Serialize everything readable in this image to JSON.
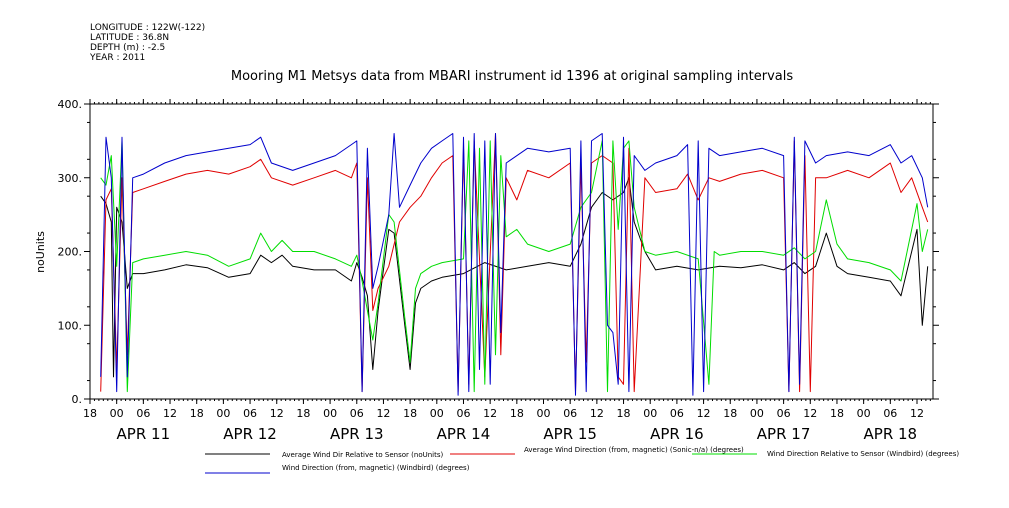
{
  "meta": {
    "longitude": "LONGITUDE : 122W(-122)",
    "latitude": "LATITUDE : 36.8N",
    "depth": "DEPTH (m) : -2.5",
    "year": "YEAR : 2011"
  },
  "chart_data": {
    "type": "line",
    "title": "Mooring M1 Metsys data from MBARI instrument id 1396 at original sampling intervals",
    "ylabel": "noUnits",
    "xlabel": "",
    "ylim": [
      0,
      400
    ],
    "yticks": [
      "0.",
      "100.",
      "200.",
      "300.",
      "400."
    ],
    "xlim_days": [
      10.5,
      18.4
    ],
    "x_hour_ticks": [
      "18",
      "00",
      "06",
      "12",
      "18",
      "00",
      "06",
      "12",
      "18",
      "00",
      "06",
      "12",
      "18",
      "00",
      "06",
      "12",
      "18",
      "00",
      "06",
      "12",
      "18",
      "00",
      "06",
      "12",
      "18",
      "00",
      "06",
      "12",
      "18",
      "00",
      "06",
      "12"
    ],
    "x_date_labels": [
      "APR 11",
      "APR 12",
      "APR 13",
      "APR 14",
      "APR 15",
      "APR 16",
      "APR 17",
      "APR 18"
    ],
    "x_date_positions": [
      11,
      12,
      13,
      14,
      15,
      16,
      17,
      18
    ],
    "grid": false,
    "legend_position": "bottom",
    "series": [
      {
        "name": "Average Wind Dir Relative to Sensor (noUnits)",
        "color": "#000000",
        "points": [
          [
            10.6,
            275
          ],
          [
            10.65,
            265
          ],
          [
            10.7,
            240
          ],
          [
            10.72,
            30
          ],
          [
            10.75,
            260
          ],
          [
            10.8,
            240
          ],
          [
            10.85,
            150
          ],
          [
            10.9,
            170
          ],
          [
            11.0,
            170
          ],
          [
            11.2,
            175
          ],
          [
            11.4,
            182
          ],
          [
            11.6,
            178
          ],
          [
            11.8,
            165
          ],
          [
            12.0,
            170
          ],
          [
            12.1,
            195
          ],
          [
            12.2,
            185
          ],
          [
            12.3,
            195
          ],
          [
            12.4,
            180
          ],
          [
            12.6,
            175
          ],
          [
            12.8,
            175
          ],
          [
            12.95,
            160
          ],
          [
            13.0,
            185
          ],
          [
            13.05,
            165
          ],
          [
            13.1,
            140
          ],
          [
            13.15,
            40
          ],
          [
            13.2,
            120
          ],
          [
            13.25,
            175
          ],
          [
            13.3,
            230
          ],
          [
            13.35,
            225
          ],
          [
            13.45,
            100
          ],
          [
            13.5,
            40
          ],
          [
            13.55,
            130
          ],
          [
            13.6,
            150
          ],
          [
            13.7,
            160
          ],
          [
            13.8,
            165
          ],
          [
            14.0,
            170
          ],
          [
            14.2,
            185
          ],
          [
            14.4,
            175
          ],
          [
            14.6,
            180
          ],
          [
            14.8,
            185
          ],
          [
            15.0,
            180
          ],
          [
            15.1,
            210
          ],
          [
            15.2,
            260
          ],
          [
            15.3,
            280
          ],
          [
            15.4,
            270
          ],
          [
            15.5,
            280
          ],
          [
            15.55,
            300
          ],
          [
            15.6,
            240
          ],
          [
            15.7,
            200
          ],
          [
            15.8,
            175
          ],
          [
            16.0,
            180
          ],
          [
            16.2,
            175
          ],
          [
            16.4,
            180
          ],
          [
            16.6,
            178
          ],
          [
            16.8,
            182
          ],
          [
            17.0,
            175
          ],
          [
            17.1,
            185
          ],
          [
            17.2,
            170
          ],
          [
            17.3,
            180
          ],
          [
            17.4,
            225
          ],
          [
            17.5,
            180
          ],
          [
            17.6,
            170
          ],
          [
            17.8,
            165
          ],
          [
            18.0,
            160
          ],
          [
            18.1,
            140
          ],
          [
            18.2,
            200
          ],
          [
            18.25,
            230
          ],
          [
            18.3,
            100
          ],
          [
            18.35,
            180
          ]
        ]
      },
      {
        "name": "Average Wind Direction (from, magnetic) (Sonic-n/a) (degrees)",
        "color": "#e00000",
        "points": [
          [
            10.6,
            10
          ],
          [
            10.65,
            270
          ],
          [
            10.7,
            285
          ],
          [
            10.75,
            40
          ],
          [
            10.8,
            300
          ],
          [
            10.85,
            60
          ],
          [
            10.9,
            280
          ],
          [
            11.0,
            285
          ],
          [
            11.2,
            295
          ],
          [
            11.4,
            305
          ],
          [
            11.6,
            310
          ],
          [
            11.8,
            305
          ],
          [
            12.0,
            315
          ],
          [
            12.1,
            325
          ],
          [
            12.2,
            300
          ],
          [
            12.4,
            290
          ],
          [
            12.6,
            300
          ],
          [
            12.8,
            310
          ],
          [
            12.95,
            300
          ],
          [
            13.0,
            320
          ],
          [
            13.05,
            10
          ],
          [
            13.1,
            300
          ],
          [
            13.15,
            120
          ],
          [
            13.2,
            150
          ],
          [
            13.3,
            180
          ],
          [
            13.4,
            240
          ],
          [
            13.5,
            260
          ],
          [
            13.6,
            275
          ],
          [
            13.7,
            300
          ],
          [
            13.8,
            320
          ],
          [
            13.9,
            330
          ],
          [
            13.95,
            10
          ],
          [
            14.0,
            340
          ],
          [
            14.05,
            20
          ],
          [
            14.1,
            350
          ],
          [
            14.2,
            30
          ],
          [
            14.3,
            360
          ],
          [
            14.35,
            60
          ],
          [
            14.4,
            300
          ],
          [
            14.5,
            270
          ],
          [
            14.6,
            310
          ],
          [
            14.8,
            300
          ],
          [
            15.0,
            320
          ],
          [
            15.05,
            10
          ],
          [
            15.1,
            320
          ],
          [
            15.15,
            50
          ],
          [
            15.2,
            320
          ],
          [
            15.3,
            330
          ],
          [
            15.4,
            320
          ],
          [
            15.45,
            30
          ],
          [
            15.5,
            20
          ],
          [
            15.55,
            340
          ],
          [
            15.6,
            10
          ],
          [
            15.7,
            300
          ],
          [
            15.8,
            280
          ],
          [
            16.0,
            285
          ],
          [
            16.1,
            305
          ],
          [
            16.2,
            270
          ],
          [
            16.3,
            300
          ],
          [
            16.4,
            295
          ],
          [
            16.6,
            305
          ],
          [
            16.8,
            310
          ],
          [
            17.0,
            300
          ],
          [
            17.05,
            10
          ],
          [
            17.1,
            350
          ],
          [
            17.15,
            10
          ],
          [
            17.2,
            330
          ],
          [
            17.25,
            10
          ],
          [
            17.3,
            300
          ],
          [
            17.4,
            300
          ],
          [
            17.6,
            310
          ],
          [
            17.8,
            300
          ],
          [
            18.0,
            320
          ],
          [
            18.1,
            280
          ],
          [
            18.2,
            300
          ],
          [
            18.3,
            260
          ],
          [
            18.35,
            240
          ]
        ]
      },
      {
        "name": "Wind Direction Relative to Sensor (Windbird) (degrees)",
        "color": "#00dd00",
        "points": [
          [
            10.6,
            300
          ],
          [
            10.65,
            290
          ],
          [
            10.7,
            330
          ],
          [
            10.75,
            180
          ],
          [
            10.8,
            350
          ],
          [
            10.85,
            10
          ],
          [
            10.9,
            185
          ],
          [
            11.0,
            190
          ],
          [
            11.2,
            195
          ],
          [
            11.4,
            200
          ],
          [
            11.6,
            195
          ],
          [
            11.8,
            180
          ],
          [
            12.0,
            190
          ],
          [
            12.1,
            225
          ],
          [
            12.2,
            200
          ],
          [
            12.3,
            215
          ],
          [
            12.4,
            200
          ],
          [
            12.6,
            200
          ],
          [
            12.8,
            190
          ],
          [
            12.95,
            180
          ],
          [
            13.0,
            195
          ],
          [
            13.05,
            160
          ],
          [
            13.1,
            120
          ],
          [
            13.15,
            80
          ],
          [
            13.2,
            130
          ],
          [
            13.25,
            190
          ],
          [
            13.3,
            250
          ],
          [
            13.35,
            240
          ],
          [
            13.45,
            110
          ],
          [
            13.5,
            50
          ],
          [
            13.55,
            150
          ],
          [
            13.6,
            170
          ],
          [
            13.7,
            180
          ],
          [
            13.8,
            185
          ],
          [
            14.0,
            190
          ],
          [
            14.05,
            350
          ],
          [
            14.1,
            10
          ],
          [
            14.15,
            340
          ],
          [
            14.2,
            20
          ],
          [
            14.25,
            350
          ],
          [
            14.3,
            60
          ],
          [
            14.35,
            330
          ],
          [
            14.4,
            220
          ],
          [
            14.5,
            230
          ],
          [
            14.6,
            210
          ],
          [
            14.8,
            200
          ],
          [
            15.0,
            210
          ],
          [
            15.1,
            260
          ],
          [
            15.2,
            280
          ],
          [
            15.3,
            350
          ],
          [
            15.35,
            10
          ],
          [
            15.4,
            350
          ],
          [
            15.45,
            230
          ],
          [
            15.5,
            340
          ],
          [
            15.55,
            350
          ],
          [
            15.6,
            260
          ],
          [
            15.7,
            200
          ],
          [
            15.8,
            195
          ],
          [
            16.0,
            200
          ],
          [
            16.2,
            190
          ],
          [
            16.3,
            20
          ],
          [
            16.35,
            200
          ],
          [
            16.4,
            195
          ],
          [
            16.6,
            200
          ],
          [
            16.8,
            200
          ],
          [
            17.0,
            195
          ],
          [
            17.1,
            205
          ],
          [
            17.2,
            190
          ],
          [
            17.3,
            200
          ],
          [
            17.4,
            270
          ],
          [
            17.5,
            210
          ],
          [
            17.6,
            190
          ],
          [
            17.8,
            185
          ],
          [
            18.0,
            175
          ],
          [
            18.1,
            160
          ],
          [
            18.2,
            230
          ],
          [
            18.25,
            265
          ],
          [
            18.3,
            200
          ],
          [
            18.35,
            230
          ]
        ]
      },
      {
        "name": "Wind Direction (from, magnetic) (Windbird) (degrees)",
        "color": "#0000cc",
        "points": [
          [
            10.6,
            30
          ],
          [
            10.65,
            355
          ],
          [
            10.7,
            300
          ],
          [
            10.75,
            10
          ],
          [
            10.8,
            355
          ],
          [
            10.85,
            30
          ],
          [
            10.9,
            300
          ],
          [
            11.0,
            305
          ],
          [
            11.2,
            320
          ],
          [
            11.4,
            330
          ],
          [
            11.6,
            335
          ],
          [
            11.8,
            340
          ],
          [
            12.0,
            345
          ],
          [
            12.1,
            355
          ],
          [
            12.2,
            320
          ],
          [
            12.4,
            310
          ],
          [
            12.6,
            320
          ],
          [
            12.8,
            330
          ],
          [
            12.95,
            345
          ],
          [
            13.0,
            350
          ],
          [
            13.05,
            10
          ],
          [
            13.1,
            340
          ],
          [
            13.15,
            150
          ],
          [
            13.2,
            180
          ],
          [
            13.3,
            250
          ],
          [
            13.35,
            360
          ],
          [
            13.4,
            260
          ],
          [
            13.5,
            290
          ],
          [
            13.6,
            320
          ],
          [
            13.7,
            340
          ],
          [
            13.8,
            350
          ],
          [
            13.9,
            360
          ],
          [
            13.95,
            5
          ],
          [
            14.0,
            355
          ],
          [
            14.05,
            10
          ],
          [
            14.1,
            360
          ],
          [
            14.15,
            40
          ],
          [
            14.2,
            350
          ],
          [
            14.25,
            20
          ],
          [
            14.3,
            360
          ],
          [
            14.35,
            90
          ],
          [
            14.4,
            320
          ],
          [
            14.6,
            340
          ],
          [
            14.8,
            335
          ],
          [
            15.0,
            340
          ],
          [
            15.05,
            5
          ],
          [
            15.1,
            350
          ],
          [
            15.15,
            10
          ],
          [
            15.2,
            350
          ],
          [
            15.3,
            360
          ],
          [
            15.35,
            100
          ],
          [
            15.4,
            90
          ],
          [
            15.45,
            20
          ],
          [
            15.5,
            355
          ],
          [
            15.55,
            10
          ],
          [
            15.6,
            330
          ],
          [
            15.7,
            310
          ],
          [
            15.8,
            320
          ],
          [
            16.0,
            330
          ],
          [
            16.1,
            345
          ],
          [
            16.15,
            5
          ],
          [
            16.2,
            350
          ],
          [
            16.25,
            10
          ],
          [
            16.3,
            340
          ],
          [
            16.4,
            330
          ],
          [
            16.6,
            335
          ],
          [
            16.8,
            340
          ],
          [
            17.0,
            330
          ],
          [
            17.05,
            10
          ],
          [
            17.1,
            355
          ],
          [
            17.15,
            20
          ],
          [
            17.2,
            350
          ],
          [
            17.3,
            320
          ],
          [
            17.4,
            330
          ],
          [
            17.6,
            335
          ],
          [
            17.8,
            330
          ],
          [
            18.0,
            345
          ],
          [
            18.1,
            320
          ],
          [
            18.2,
            330
          ],
          [
            18.3,
            300
          ],
          [
            18.35,
            260
          ]
        ]
      }
    ]
  }
}
